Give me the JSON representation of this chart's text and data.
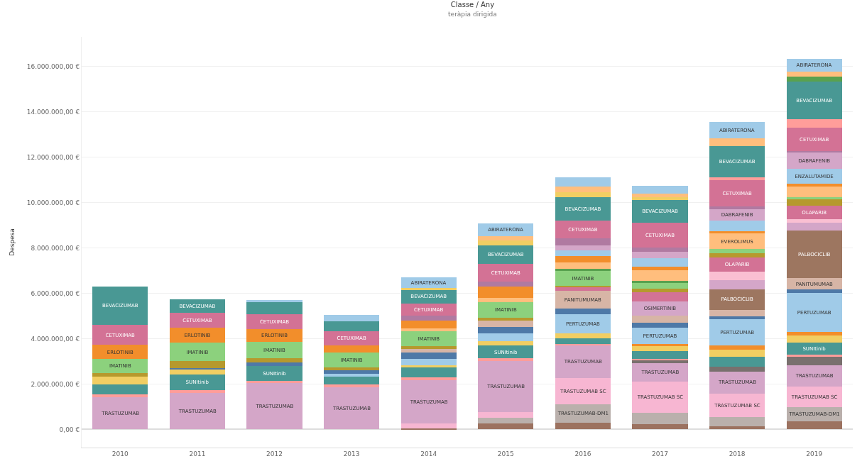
{
  "chart_data": {
    "type": "bar",
    "title": "Classe / Any",
    "subtitle": "teràpia dirigida",
    "ylabel": "Despesa",
    "stacked": true,
    "grid": "y",
    "categories": [
      "2010",
      "2011",
      "2012",
      "2013",
      "2014",
      "2015",
      "2016",
      "2017",
      "2018",
      "2019"
    ],
    "ylim": [
      -800000,
      17300000
    ],
    "yticks": [
      {
        "value": 0,
        "label": "0,00 €"
      },
      {
        "value": 2000000,
        "label": "2.000.000,00 €"
      },
      {
        "value": 4000000,
        "label": "4.000.000,00 €"
      },
      {
        "value": 6000000,
        "label": "6.000.000,00 €"
      },
      {
        "value": 8000000,
        "label": "8.000.000,00 €"
      },
      {
        "value": 10000000,
        "label": "10.000.000,00 €"
      },
      {
        "value": 12000000,
        "label": "12.000.000,00 €"
      },
      {
        "value": 14000000,
        "label": "14.000.000,00 €"
      },
      {
        "value": 16000000,
        "label": "16.000.000,00 €"
      }
    ],
    "series": [
      {
        "color": "#9c7260",
        "values": [
          null,
          null,
          null,
          null,
          50000,
          250000,
          280000,
          230000,
          150000,
          350000
        ]
      },
      {
        "color": "#bab0ac",
        "values": [
          null,
          null,
          null,
          null,
          null,
          260000,
          840000,
          490000,
          400000,
          640000
        ],
        "value_labels": [
          null,
          null,
          null,
          null,
          null,
          null,
          "TRASTUZUMAB-DM1",
          null,
          null,
          "TRASTUZUMAB-DM1"
        ]
      },
      {
        "color": "#f7b6d2",
        "values": [
          null,
          null,
          null,
          null,
          200000,
          260000,
          1150000,
          1400000,
          1040000,
          890000
        ],
        "value_labels": [
          null,
          null,
          null,
          null,
          null,
          null,
          "TRASTUZUMAB SC",
          "TRASTUZUMAB SC",
          "TRASTUZUMAB SC",
          "TRASTUZUMAB SC"
        ]
      },
      {
        "color": "#d4a6c8",
        "values": [
          1420000,
          1610000,
          2050000,
          1870000,
          1920000,
          2230000,
          1440000,
          790000,
          970000,
          960000
        ],
        "value_labels": [
          "TRASTUZUMAB",
          "TRASTUZUMAB",
          "TRASTUZUMAB",
          "TRASTUZUMAB",
          "TRASTUZUMAB",
          "TRASTUZUMAB",
          "TRASTUZUMAB",
          "TRASTUZUMAB",
          "TRASTUZUMAB",
          "TRASTUZUMAB"
        ]
      },
      {
        "color": "#79706e",
        "values": [
          null,
          null,
          null,
          null,
          null,
          null,
          null,
          130000,
          210000,
          350000
        ]
      },
      {
        "color": "#ff9d9a",
        "values": [
          130000,
          110000,
          100000,
          100000,
          110000,
          130000,
          60000,
          70000,
          null,
          120000
        ]
      },
      {
        "color": "#499894",
        "values": [
          440000,
          710000,
          630000,
          370000,
          460000,
          560000,
          250000,
          340000,
          440000,
          520000
        ],
        "value_labels": [
          null,
          "SUNItinib",
          "SUNItinib",
          null,
          null,
          "SUNItinib",
          null,
          null,
          null,
          "SUNItinib"
        ]
      },
      {
        "color": "#f1ce63",
        "values": [
          340000,
          220000,
          null,
          null,
          100000,
          210000,
          210000,
          210000,
          310000,
          310000
        ]
      },
      {
        "color": "#f28e2b",
        "values": [
          null,
          null,
          null,
          null,
          null,
          null,
          null,
          100000,
          170000,
          150000
        ]
      },
      {
        "color": "#a0cbe8",
        "values": [
          null,
          null,
          null,
          120000,
          280000,
          340000,
          850000,
          710000,
          1180000,
          1730000
        ],
        "value_labels": [
          null,
          null,
          null,
          null,
          null,
          null,
          "PERTUZUMAB",
          "PERTUZUMAB",
          "PERTUZUMAB",
          "PERTUZUMAB"
        ]
      },
      {
        "color": "#4e79a7",
        "values": [
          null,
          60000,
          180000,
          140000,
          280000,
          260000,
          260000,
          240000,
          120000,
          140000
        ]
      },
      {
        "color": "#d7b5a6",
        "values": [
          null,
          null,
          null,
          null,
          130000,
          310000,
          770000,
          310000,
          290000,
          500000
        ],
        "value_labels": [
          null,
          null,
          null,
          null,
          null,
          null,
          "PANITUMUMAB",
          null,
          null,
          "PANITUMUMAB"
        ]
      },
      {
        "color": "#9d7660",
        "values": [
          null,
          null,
          null,
          null,
          null,
          null,
          null,
          null,
          900000,
          2100000
        ],
        "value_labels": [
          null,
          null,
          null,
          null,
          null,
          null,
          null,
          null,
          "PALBOCICLIB",
          "PALBOCICLIB"
        ]
      },
      {
        "color": "#d4a6c8",
        "values": [
          null,
          null,
          null,
          null,
          null,
          null,
          null,
          620000,
          400000,
          350000
        ],
        "value_labels": [
          null,
          null,
          null,
          null,
          null,
          null,
          null,
          "OSIMERTINIB",
          null,
          null
        ]
      },
      {
        "color": "#fabfd2",
        "values": [
          null,
          null,
          null,
          null,
          null,
          null,
          null,
          null,
          370000,
          170000
        ]
      },
      {
        "color": "#d37295",
        "values": [
          null,
          null,
          null,
          null,
          null,
          null,
          150000,
          410000,
          640000,
          580000
        ],
        "value_labels": [
          null,
          null,
          null,
          null,
          null,
          null,
          null,
          null,
          "OLAPARIB",
          "OLAPARIB"
        ]
      },
      {
        "color": "#b6992d",
        "values": [
          160000,
          290000,
          190000,
          140000,
          130000,
          120000,
          80000,
          150000,
          170000,
          290000
        ]
      },
      {
        "color": "#8cd17d",
        "values": [
          610000,
          820000,
          700000,
          660000,
          660000,
          670000,
          640000,
          260000,
          180000,
          90000
        ],
        "value_labels": [
          "IMATINIB",
          "IMATINIB",
          "IMATINIB",
          "IMATINIB",
          "IMATINIB",
          "IMATINIB",
          "IMATINIB",
          null,
          null,
          null
        ]
      },
      {
        "color": "#59a14f",
        "values": [
          null,
          null,
          null,
          null,
          null,
          null,
          100000,
          80000,
          null,
          null
        ]
      },
      {
        "color": "#ffbe7d",
        "values": [
          null,
          null,
          null,
          null,
          130000,
          210000,
          290000,
          460000,
          690000,
          460000
        ],
        "value_labels": [
          null,
          null,
          null,
          null,
          null,
          null,
          null,
          null,
          "EVEROLIMUS",
          null
        ]
      },
      {
        "color": "#f28e2b",
        "values": [
          620000,
          660000,
          570000,
          310000,
          360000,
          480000,
          280000,
          170000,
          90000,
          120000
        ],
        "value_labels": [
          "ERLOTINIB",
          "ERLOTINIB",
          "ERLOTINIB",
          null,
          null,
          null,
          null,
          null,
          null,
          null
        ]
      },
      {
        "color": "#a0cbe8",
        "values": [
          null,
          null,
          null,
          null,
          null,
          null,
          240000,
          390000,
          470000,
          660000
        ],
        "value_labels": [
          null,
          null,
          null,
          null,
          null,
          null,
          null,
          null,
          null,
          "ENZALUTAMIDE"
        ]
      },
      {
        "color": "#d4a6c8",
        "values": [
          null,
          null,
          null,
          null,
          null,
          null,
          230000,
          260000,
          520000,
          730000
        ],
        "value_labels": [
          null,
          null,
          null,
          null,
          null,
          null,
          null,
          null,
          "DABRAFENIB",
          "DABRAFENIB"
        ]
      },
      {
        "color": "#b07aa1",
        "values": [
          null,
          null,
          null,
          null,
          210000,
          240000,
          290000,
          200000,
          120000,
          60000
        ]
      },
      {
        "color": "#d37295",
        "values": [
          890000,
          650000,
          670000,
          620000,
          530000,
          770000,
          790000,
          1090000,
          1160000,
          1040000
        ],
        "value_labels": [
          "CETUXIMAB",
          "CETUXIMAB",
          "CETUXIMAB",
          "CETUXIMAB",
          "CETUXIMAB",
          "CETUXIMAB",
          "CETUXIMAB",
          "CETUXIMAB",
          "CETUXIMAB",
          "CETUXIMAB"
        ]
      },
      {
        "color": "#ff9d9a",
        "values": [
          null,
          null,
          null,
          null,
          null,
          null,
          null,
          null,
          120000,
          350000
        ]
      },
      {
        "color": "#499894",
        "values": [
          1680000,
          590000,
          520000,
          450000,
          620000,
          820000,
          1030000,
          1000000,
          1390000,
          1660000
        ],
        "value_labels": [
          "BEVACIZUMAB",
          "BEVACIZUMAB",
          null,
          null,
          "BEVACIZUMAB",
          "BEVACIZUMAB",
          "BEVACIZUMAB",
          "BEVACIZUMAB",
          "BEVACIZUMAB",
          "BEVACIZUMAB"
        ]
      },
      {
        "color": "#59a14f",
        "values": [
          null,
          null,
          null,
          null,
          null,
          null,
          null,
          null,
          null,
          230000
        ]
      },
      {
        "color": "#f1ce63",
        "values": [
          null,
          null,
          null,
          null,
          60000,
          210000,
          210000,
          120000,
          null,
          null
        ]
      },
      {
        "color": "#ffbe7d",
        "values": [
          null,
          null,
          null,
          null,
          null,
          180000,
          270000,
          150000,
          340000,
          230000
        ]
      },
      {
        "color": "#a0cbe8",
        "values": [
          null,
          null,
          90000,
          270000,
          480000,
          580000,
          390000,
          370000,
          710000,
          550000
        ],
        "value_labels": [
          null,
          null,
          null,
          null,
          "ABIRATERONA",
          "ABIRATERONA",
          null,
          null,
          "ABIRATERONA",
          "ABIRATERONA"
        ]
      }
    ]
  }
}
